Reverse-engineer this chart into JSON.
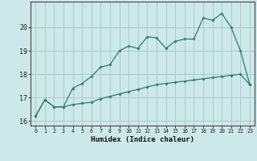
{
  "xlabel": "Humidex (Indice chaleur)",
  "x": [
    0,
    1,
    2,
    3,
    4,
    5,
    6,
    7,
    8,
    9,
    10,
    11,
    12,
    13,
    14,
    15,
    16,
    17,
    18,
    19,
    20,
    21,
    22,
    23
  ],
  "line1": [
    16.2,
    16.9,
    16.6,
    16.6,
    17.4,
    17.6,
    17.9,
    18.3,
    18.4,
    19.0,
    19.2,
    19.1,
    19.6,
    19.55,
    19.1,
    19.4,
    19.5,
    19.5,
    20.4,
    20.3,
    20.6,
    20.0,
    19.0,
    17.55
  ],
  "line2": [
    16.2,
    16.9,
    16.6,
    16.6,
    16.7,
    16.75,
    16.8,
    16.95,
    17.05,
    17.15,
    17.25,
    17.35,
    17.45,
    17.55,
    17.6,
    17.65,
    17.7,
    17.75,
    17.8,
    17.85,
    17.9,
    17.95,
    18.0,
    17.55
  ],
  "line_color": "#2e7d6e",
  "bg_color": "#cce8e8",
  "grid_color": "#aacccc",
  "ylim": [
    15.8,
    21.1
  ],
  "xlim": [
    -0.5,
    23.5
  ],
  "yticks": [
    16,
    17,
    18,
    19,
    20
  ],
  "xticks": [
    0,
    1,
    2,
    3,
    4,
    5,
    6,
    7,
    8,
    9,
    10,
    11,
    12,
    13,
    14,
    15,
    16,
    17,
    18,
    19,
    20,
    21,
    22,
    23
  ]
}
